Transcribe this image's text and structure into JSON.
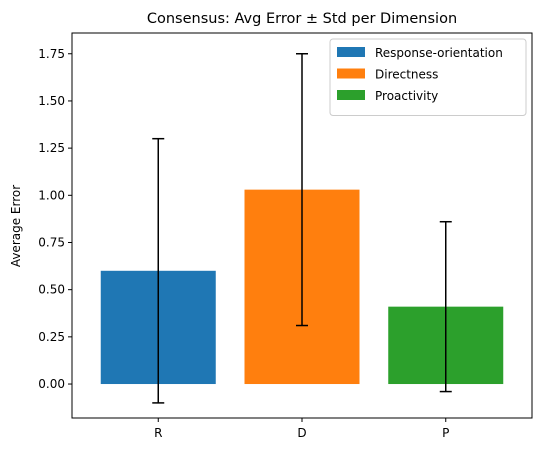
{
  "chart_data": {
    "type": "bar",
    "title": "Consensus: Avg Error ± Std per Dimension",
    "xlabel": "",
    "ylabel": "Average Error",
    "categories": [
      "R",
      "D",
      "P"
    ],
    "values": [
      0.6,
      1.03,
      0.41
    ],
    "std": [
      0.7,
      0.72,
      0.45
    ],
    "colors": [
      "#1f77b4",
      "#ff7f0e",
      "#2ca02c"
    ],
    "ylim": [
      -0.18,
      1.86
    ],
    "yticks": [
      0.0,
      0.25,
      0.5,
      0.75,
      1.0,
      1.25,
      1.5,
      1.75
    ],
    "ytick_labels": [
      "0.00",
      "0.25",
      "0.50",
      "0.75",
      "1.00",
      "1.25",
      "1.50",
      "1.75"
    ],
    "grid": false,
    "legend_position": "top-right",
    "legend": [
      {
        "label": "Response-orientation",
        "color": "#1f77b4"
      },
      {
        "label": "Directness",
        "color": "#ff7f0e"
      },
      {
        "label": "Proactivity",
        "color": "#2ca02c"
      }
    ]
  }
}
